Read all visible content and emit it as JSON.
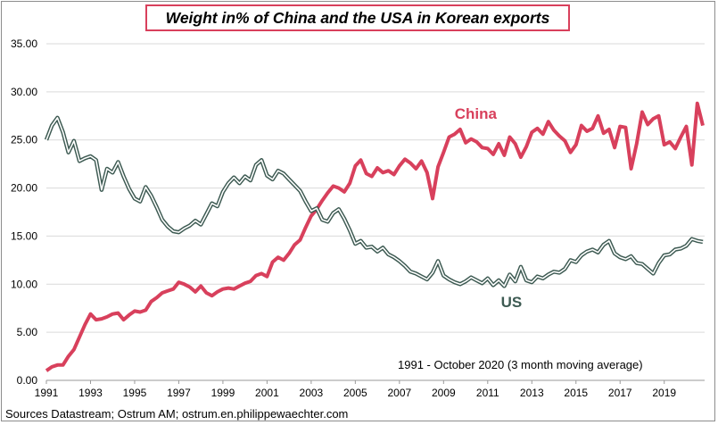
{
  "chart_data": {
    "type": "line",
    "title": "Weight in% of China and the USA in Korean exports",
    "xlabel": "",
    "ylabel": "",
    "xlim": [
      1991.0,
      2020.83
    ],
    "ylim": [
      0,
      35
    ],
    "y_ticks": [
      0,
      5,
      10,
      15,
      20,
      25,
      30,
      35
    ],
    "y_tick_labels": [
      "0.00",
      "5.00",
      "10.00",
      "15.00",
      "20.00",
      "25.00",
      "30.00",
      "35.00"
    ],
    "x_ticks": [
      1991,
      1993,
      1995,
      1997,
      1999,
      2001,
      2003,
      2005,
      2007,
      2009,
      2011,
      2013,
      2015,
      2017,
      2019
    ],
    "x_tick_labels": [
      "1991",
      "1993",
      "1995",
      "1997",
      "1999",
      "2001",
      "2003",
      "2005",
      "2007",
      "2009",
      "2011",
      "2013",
      "2015",
      "2017",
      "2019"
    ],
    "grid": "horizontal",
    "legend": "none",
    "annotation": "1991 - October 2020 (3 month moving average)",
    "source": "Sources Datastream; Ostrum AM; ostrum.en.philippewaechter.com",
    "series": [
      {
        "name": "China",
        "color": "#d8405c",
        "x": [
          1991.0,
          1991.25,
          1991.5,
          1991.75,
          1992.0,
          1992.25,
          1992.5,
          1992.75,
          1993.0,
          1993.25,
          1993.5,
          1993.75,
          1994.0,
          1994.25,
          1994.5,
          1994.75,
          1995.0,
          1995.25,
          1995.5,
          1995.75,
          1996.0,
          1996.25,
          1996.5,
          1996.75,
          1997.0,
          1997.25,
          1997.5,
          1997.75,
          1998.0,
          1998.25,
          1998.5,
          1998.75,
          1999.0,
          1999.25,
          1999.5,
          1999.75,
          2000.0,
          2000.25,
          2000.5,
          2000.75,
          2001.0,
          2001.25,
          2001.5,
          2001.75,
          2002.0,
          2002.25,
          2002.5,
          2002.75,
          2003.0,
          2003.25,
          2003.5,
          2003.75,
          2004.0,
          2004.25,
          2004.5,
          2004.75,
          2005.0,
          2005.25,
          2005.5,
          2005.75,
          2006.0,
          2006.25,
          2006.5,
          2006.75,
          2007.0,
          2007.25,
          2007.5,
          2007.75,
          2008.0,
          2008.25,
          2008.5,
          2008.75,
          2009.0,
          2009.25,
          2009.5,
          2009.75,
          2010.0,
          2010.25,
          2010.5,
          2010.75,
          2011.0,
          2011.25,
          2011.5,
          2011.75,
          2012.0,
          2012.25,
          2012.5,
          2012.75,
          2013.0,
          2013.25,
          2013.5,
          2013.75,
          2014.0,
          2014.25,
          2014.5,
          2014.75,
          2015.0,
          2015.25,
          2015.5,
          2015.75,
          2016.0,
          2016.25,
          2016.5,
          2016.75,
          2017.0,
          2017.25,
          2017.5,
          2017.75,
          2018.0,
          2018.25,
          2018.5,
          2018.75,
          2019.0,
          2019.25,
          2019.5,
          2019.75,
          2020.0,
          2020.25,
          2020.5,
          2020.75
        ],
        "values": [
          1.0,
          1.4,
          1.6,
          1.6,
          2.5,
          3.2,
          4.5,
          5.8,
          6.9,
          6.3,
          6.4,
          6.6,
          6.9,
          7.0,
          6.3,
          6.8,
          7.2,
          7.1,
          7.3,
          8.2,
          8.6,
          9.1,
          9.3,
          9.5,
          10.2,
          10.0,
          9.7,
          9.2,
          9.8,
          9.1,
          8.8,
          9.2,
          9.5,
          9.6,
          9.5,
          9.8,
          10.1,
          10.3,
          10.9,
          11.1,
          10.8,
          12.3,
          12.8,
          12.5,
          13.2,
          14.1,
          14.6,
          15.9,
          17.1,
          17.8,
          18.7,
          19.5,
          20.2,
          20.0,
          19.6,
          20.5,
          22.3,
          22.9,
          21.5,
          21.2,
          22.1,
          21.6,
          21.8,
          21.4,
          22.3,
          23.0,
          22.6,
          22.0,
          22.8,
          21.6,
          18.9,
          22.2,
          23.7,
          25.3,
          25.6,
          26.1,
          24.7,
          25.1,
          24.8,
          24.2,
          24.1,
          23.5,
          24.6,
          23.4,
          25.3,
          24.6,
          23.2,
          24.3,
          25.8,
          26.2,
          25.6,
          26.9,
          26.0,
          25.4,
          24.9,
          23.7,
          24.5,
          26.5,
          25.9,
          26.2,
          27.5,
          25.7,
          26.1,
          24.2,
          26.4,
          26.3,
          22.0,
          24.6,
          27.9,
          26.6,
          27.2,
          27.5,
          24.5,
          24.8,
          24.1,
          25.3,
          26.4,
          22.4,
          28.8,
          26.5
        ]
      },
      {
        "name": "US",
        "color": "#3d5a52",
        "x": [
          1991.0,
          1991.25,
          1991.5,
          1991.75,
          1992.0,
          1992.25,
          1992.5,
          1992.75,
          1993.0,
          1993.25,
          1993.5,
          1993.75,
          1994.0,
          1994.25,
          1994.5,
          1994.75,
          1995.0,
          1995.25,
          1995.5,
          1995.75,
          1996.0,
          1996.25,
          1996.5,
          1996.75,
          1997.0,
          1997.25,
          1997.5,
          1997.75,
          1998.0,
          1998.25,
          1998.5,
          1998.75,
          1999.0,
          1999.25,
          1999.5,
          1999.75,
          2000.0,
          2000.25,
          2000.5,
          2000.75,
          2001.0,
          2001.25,
          2001.5,
          2001.75,
          2002.0,
          2002.25,
          2002.5,
          2002.75,
          2003.0,
          2003.25,
          2003.5,
          2003.75,
          2004.0,
          2004.25,
          2004.5,
          2004.75,
          2005.0,
          2005.25,
          2005.5,
          2005.75,
          2006.0,
          2006.25,
          2006.5,
          2006.75,
          2007.0,
          2007.25,
          2007.5,
          2007.75,
          2008.0,
          2008.25,
          2008.5,
          2008.75,
          2009.0,
          2009.25,
          2009.5,
          2009.75,
          2010.0,
          2010.25,
          2010.5,
          2010.75,
          2011.0,
          2011.25,
          2011.5,
          2011.75,
          2012.0,
          2012.25,
          2012.5,
          2012.75,
          2013.0,
          2013.25,
          2013.5,
          2013.75,
          2014.0,
          2014.25,
          2014.5,
          2014.75,
          2015.0,
          2015.25,
          2015.5,
          2015.75,
          2016.0,
          2016.25,
          2016.5,
          2016.75,
          2017.0,
          2017.25,
          2017.5,
          2017.75,
          2018.0,
          2018.25,
          2018.5,
          2018.75,
          2019.0,
          2019.25,
          2019.5,
          2019.75,
          2020.0,
          2020.25,
          2020.5,
          2020.75
        ],
        "values": [
          25.0,
          26.5,
          27.3,
          25.8,
          23.7,
          24.9,
          22.8,
          23.1,
          23.3,
          22.9,
          19.8,
          22.0,
          21.6,
          22.7,
          21.2,
          19.9,
          18.9,
          18.6,
          20.1,
          19.2,
          18.0,
          16.7,
          16.0,
          15.5,
          15.4,
          15.8,
          16.1,
          16.6,
          16.2,
          17.3,
          18.4,
          18.1,
          19.6,
          20.5,
          21.1,
          20.5,
          21.2,
          20.8,
          22.4,
          22.9,
          21.3,
          20.9,
          21.8,
          21.5,
          20.9,
          20.3,
          19.7,
          18.6,
          17.6,
          17.9,
          16.7,
          16.5,
          17.4,
          17.8,
          16.8,
          15.6,
          14.2,
          14.5,
          13.8,
          13.9,
          13.4,
          13.8,
          13.1,
          12.8,
          12.4,
          11.9,
          11.3,
          11.1,
          10.8,
          10.5,
          11.2,
          12.4,
          10.9,
          10.5,
          10.2,
          10.0,
          10.3,
          10.7,
          10.4,
          10.1,
          10.6,
          9.9,
          10.4,
          9.8,
          11.0,
          10.3,
          11.8,
          10.4,
          10.2,
          10.8,
          10.6,
          11.0,
          11.3,
          11.2,
          11.6,
          12.5,
          12.3,
          13.0,
          13.4,
          13.6,
          13.3,
          14.1,
          14.5,
          13.2,
          12.8,
          12.6,
          12.9,
          12.2,
          12.1,
          11.6,
          11.1,
          12.2,
          13.0,
          13.1,
          13.6,
          13.7,
          14.0,
          14.7,
          14.5,
          14.4
        ]
      }
    ],
    "series_labels": {
      "China": {
        "x": 2009.5,
        "y": 27.2
      },
      "US": {
        "x": 2011.6,
        "y": 7.6
      }
    }
  }
}
